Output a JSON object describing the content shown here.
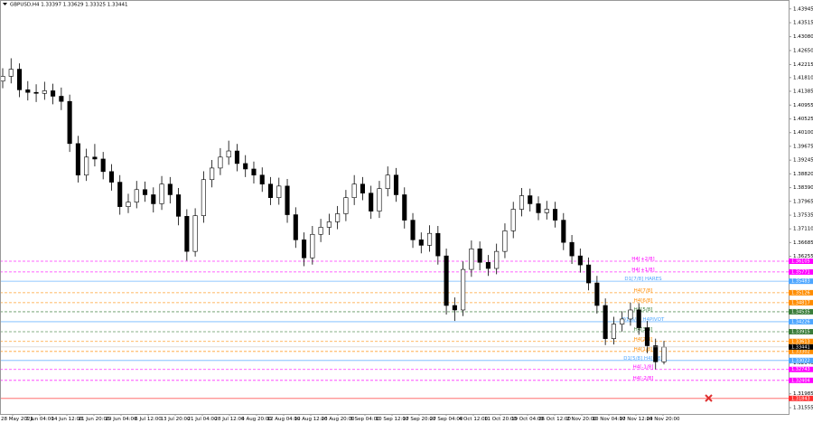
{
  "chart_data": {
    "type": "candlestick",
    "title": "GBPUSD,H4  1.33397 1.33629 1.33325 1.33441",
    "ylim": [
      1.3136,
      1.4422
    ],
    "yticks": [
      1.43945,
      1.43515,
      {
        "value": 1.4308,
        "label": "1.43080"
      },
      {
        "value": 1.4265,
        "label": "1.42650"
      },
      1.42215,
      {
        "value": 1.4181,
        "label": "1.41810"
      },
      1.41385,
      1.40955,
      1.40525,
      {
        "value": 1.401,
        "label": "1.40100"
      },
      1.39675,
      1.39245,
      {
        "value": 1.3882,
        "label": "1.38820"
      },
      {
        "value": 1.3839,
        "label": "1.38390"
      },
      1.37965,
      1.37535,
      {
        "value": 1.3711,
        "label": "1.37110"
      },
      1.36685,
      1.36255,
      {
        "value": 1.3294,
        "label": "1.32940"
      },
      1.31985,
      1.31555
    ],
    "xtick_labels": [
      "28 May 2021",
      "7 Jun 04:00",
      "14 Jun 12:00",
      "21 Jun 20:00",
      "29 Jun 04:00",
      "6 Jul 12:00",
      "13 Jul 20:00",
      "21 Jul 04:00",
      "28 Jul 12:00",
      "4 Aug 20:00",
      "12 Aug 04:00",
      "19 Aug 12:00",
      "26 Aug 20:00",
      "3 Sep 04:00",
      "10 Sep 12:00",
      "17 Sep 20:00",
      "27 Sep 04:00",
      "4 Oct 12:00",
      "11 Oct 20:00",
      "19 Oct 04:00",
      "26 Oct 12:00",
      "2 Nov 20:00",
      "10 Nov 04:00",
      "17 Nov 12:00",
      "24 Nov 20:00"
    ],
    "bull_color": "#ffffff",
    "bear_color": "#000000",
    "open": [
      1.417,
      1.4185,
      1.4207,
      1.4143,
      1.4135,
      1.4132,
      1.414,
      1.4123,
      1.4107,
      1.3976,
      1.3878,
      1.3934,
      1.3928,
      1.3889,
      1.3856,
      1.378,
      1.3794,
      1.3833,
      1.3817,
      1.3789,
      1.385,
      1.3817,
      1.375,
      1.3641,
      1.3752,
      1.3864,
      1.39,
      1.3934,
      1.3953,
      1.3914,
      1.3897,
      1.3878,
      1.385,
      1.3808,
      1.3844,
      1.3755,
      1.3677,
      1.3621,
      1.3694,
      1.3716,
      1.3733,
      1.3758,
      1.3808,
      1.385,
      1.3822,
      1.3766,
      1.3836,
      1.3878,
      1.3817,
      1.3738,
      1.3677,
      1.366,
      1.3697,
      1.3627,
      1.3473,
      1.3459,
      1.3585,
      1.3649,
      1.3607,
      1.3588,
      1.3641,
      1.3705,
      1.3772,
      1.3814,
      1.3789,
      1.3761,
      1.3772,
      1.3738,
      1.3669,
      1.3627,
      1.3599,
      1.3543,
      1.3473,
      1.337,
      1.3415,
      1.3431,
      1.3459,
      1.3404,
      1.3348,
      1.3298
    ],
    "high": [
      1.421,
      1.4241,
      1.4225,
      1.417,
      1.416,
      1.4168,
      1.4162,
      1.415,
      1.4128,
      1.4,
      1.396,
      1.3975,
      1.395,
      1.3912,
      1.3878,
      1.382,
      1.386,
      1.3858,
      1.384,
      1.3875,
      1.3872,
      1.3838,
      1.3772,
      1.3775,
      1.389,
      1.3925,
      1.3962,
      1.3985,
      1.3975,
      1.394,
      1.392,
      1.3902,
      1.3872,
      1.387,
      1.3866,
      1.3778,
      1.37,
      1.372,
      1.3742,
      1.3758,
      1.3782,
      1.3832,
      1.3878,
      1.3872,
      1.3845,
      1.386,
      1.3905,
      1.39,
      1.384,
      1.376,
      1.37,
      1.3722,
      1.372,
      1.365,
      1.3498,
      1.361,
      1.3675,
      1.3672,
      1.363,
      1.3665,
      1.3728,
      1.3795,
      1.3838,
      1.3836,
      1.3812,
      1.3798,
      1.3795,
      1.376,
      1.3692,
      1.365,
      1.3622,
      1.3565,
      1.3495,
      1.3438,
      1.3455,
      1.3482,
      1.348,
      1.3425,
      1.337,
      1.3363
    ],
    "low": [
      1.4148,
      1.4163,
      1.412,
      1.411,
      1.4105,
      1.4112,
      1.4098,
      1.408,
      1.395,
      1.3855,
      1.386,
      1.3905,
      1.3865,
      1.383,
      1.3755,
      1.376,
      1.3775,
      1.3795,
      1.3762,
      1.377,
      1.379,
      1.3722,
      1.3612,
      1.3625,
      1.373,
      1.384,
      1.3878,
      1.391,
      1.389,
      1.3872,
      1.3852,
      1.3826,
      1.3785,
      1.3786,
      1.373,
      1.3652,
      1.3595,
      1.36,
      1.367,
      1.3692,
      1.371,
      1.3735,
      1.3785,
      1.38,
      1.3742,
      1.3745,
      1.3812,
      1.3795,
      1.3712,
      1.3652,
      1.3635,
      1.364,
      1.36,
      1.3445,
      1.3425,
      1.344,
      1.3562,
      1.3582,
      1.3565,
      1.357,
      1.362,
      1.3682,
      1.375,
      1.3765,
      1.3738,
      1.374,
      1.3715,
      1.3645,
      1.3602,
      1.3575,
      1.352,
      1.3448,
      1.335,
      1.3352,
      1.3392,
      1.341,
      1.3382,
      1.3325,
      1.3275,
      1.329
    ],
    "close": [
      1.4185,
      1.4207,
      1.4143,
      1.4135,
      1.4132,
      1.414,
      1.4123,
      1.4107,
      1.3976,
      1.3878,
      1.3934,
      1.3928,
      1.3889,
      1.3856,
      1.378,
      1.3794,
      1.3833,
      1.3817,
      1.3789,
      1.385,
      1.3817,
      1.375,
      1.3641,
      1.3752,
      1.3864,
      1.39,
      1.3934,
      1.3953,
      1.3914,
      1.3897,
      1.3878,
      1.385,
      1.3808,
      1.3844,
      1.3755,
      1.3677,
      1.3621,
      1.3694,
      1.3716,
      1.3733,
      1.3758,
      1.3808,
      1.385,
      1.3822,
      1.3766,
      1.3836,
      1.3878,
      1.3817,
      1.3738,
      1.3677,
      1.366,
      1.3697,
      1.3627,
      1.3473,
      1.3459,
      1.3585,
      1.3649,
      1.3607,
      1.3588,
      1.3641,
      1.3705,
      1.3772,
      1.3814,
      1.3789,
      1.3761,
      1.3772,
      1.3738,
      1.3669,
      1.3627,
      1.3599,
      1.3543,
      1.3473,
      1.337,
      1.3415,
      1.3431,
      1.3459,
      1.3404,
      1.3348,
      1.3298,
      1.3344
    ],
    "levels": [
      {
        "label": "H4[+2/8]",
        "price": 1.36105,
        "color": "#ff00ff",
        "dashed": true
      },
      {
        "label": "H4[+1/8]",
        "price": 1.35771,
        "color": "#ff00ff",
        "dashed": true
      },
      {
        "label": "D1[7/8] HARES",
        "price": 1.35483,
        "color": "#4da6ff",
        "dashed": false
      },
      {
        "label": "H4[7/8]",
        "price": 1.35126,
        "color": "#ff8c00",
        "dashed": true
      },
      {
        "label": "H4[6/8]",
        "price": 1.34817,
        "color": "#ff8c00",
        "dashed": true
      },
      {
        "label": "H4[5/8]",
        "price": 1.34535,
        "color": "#3a7d3a",
        "dashed": true
      },
      {
        "label": "D1[6/8] H4PIVOT",
        "price": 1.34226,
        "color": "#4da6ff",
        "dashed": false
      },
      {
        "label": "H4[3/8]",
        "price": 1.33915,
        "color": "#3a7d3a",
        "dashed": true
      },
      {
        "label": "H4[2/8]",
        "price": 1.33613,
        "color": "#ff8c00",
        "dashed": true
      },
      {
        "label": "H4[1/8]",
        "price": 1.33302,
        "color": "#ff8c00",
        "dashed": true
      },
      {
        "label": "D1[5/8] H4[0/8]",
        "price": 1.33022,
        "color": "#4da6ff",
        "dashed": false
      },
      {
        "label": "H4[-1/8]",
        "price": 1.32743,
        "color": "#ff00ff",
        "dashed": true
      },
      {
        "label": "H4[-2/8]",
        "price": 1.32404,
        "color": "#ff00ff",
        "dashed": true
      },
      {
        "price": 1.31843,
        "color": "#ff3030",
        "dashed": false
      }
    ],
    "current_price": 1.33441,
    "current_price_color": "#000000"
  }
}
